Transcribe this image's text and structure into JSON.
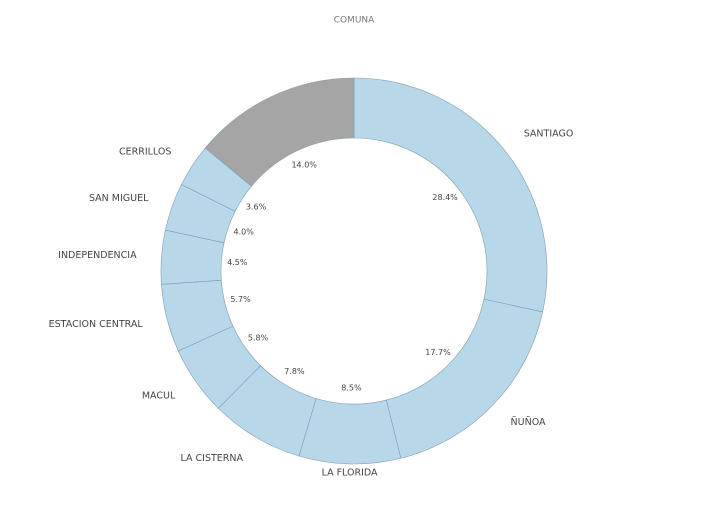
{
  "chart_data": {
    "type": "donut",
    "title": "COMUNA",
    "categories": [
      "SANTIAGO",
      "ÑUÑOA",
      "LA FLORIDA",
      "LA CISTERNA",
      "MACUL",
      "ESTACION CENTRAL",
      "INDEPENDENCIA",
      "SAN MIGUEL",
      "CERRILLOS",
      null
    ],
    "values": [
      28.4,
      17.7,
      8.5,
      7.8,
      5.8,
      5.7,
      4.5,
      4.0,
      3.6,
      14.0
    ],
    "value_labels": [
      "28.4%",
      "17.7%",
      "8.5%",
      "7.8%",
      "5.8%",
      "5.7%",
      "4.5%",
      "4.0%",
      "3.6%",
      "14.0%"
    ],
    "colors": [
      "#b8d8ea",
      "#b8d8ea",
      "#b8d8ea",
      "#b8d8ea",
      "#b8d8ea",
      "#b8d8ea",
      "#b8d8ea",
      "#b8d8ea",
      "#b8d8ea",
      "#a5a5a5"
    ]
  }
}
